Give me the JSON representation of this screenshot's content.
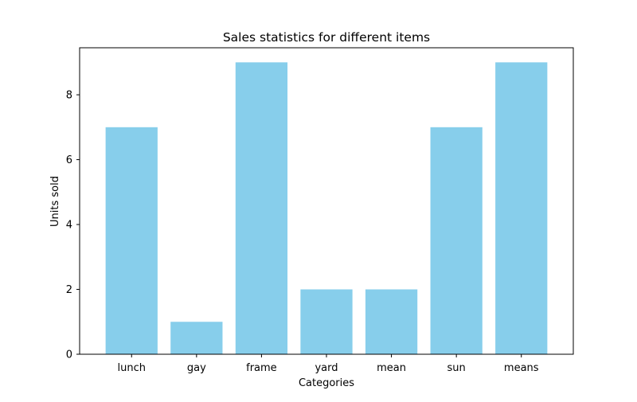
{
  "chart_data": {
    "type": "bar",
    "title": "Sales statistics for different items",
    "xlabel": "Categories",
    "ylabel": "Units sold",
    "categories": [
      "lunch",
      "gay",
      "frame",
      "yard",
      "mean",
      "sun",
      "means"
    ],
    "values": [
      7,
      1,
      9,
      2,
      2,
      7,
      9
    ],
    "ylim": [
      0,
      9.45
    ],
    "yticks": [
      0,
      2,
      4,
      6,
      8
    ],
    "bar_color": "#87CEEB",
    "grid": false,
    "legend": "none"
  }
}
